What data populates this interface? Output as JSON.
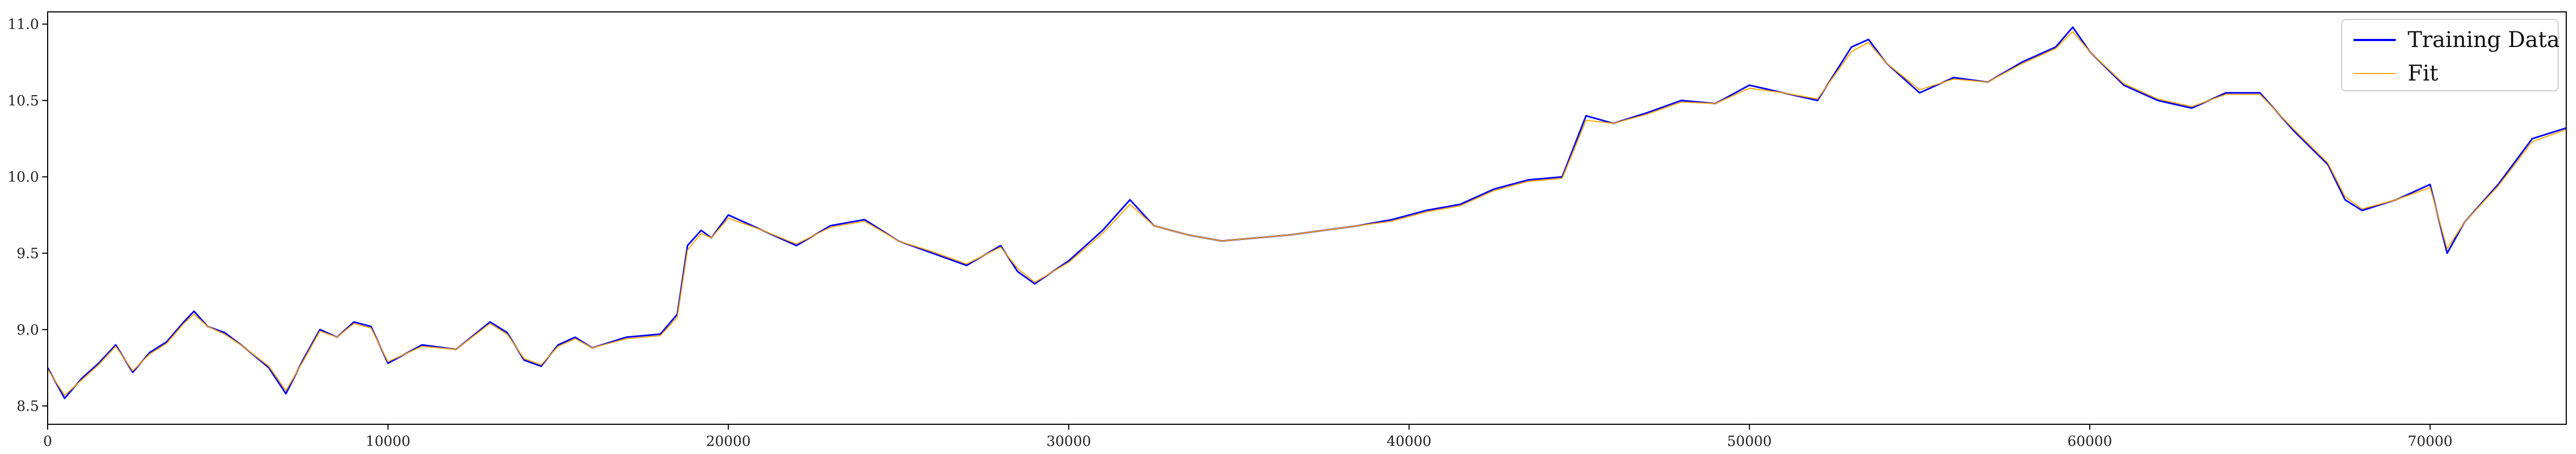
{
  "chart_data": {
    "type": "line",
    "title": "",
    "xlabel": "",
    "ylabel": "",
    "xlim": [
      0,
      74000
    ],
    "ylim": [
      8.38,
      11.08
    ],
    "xticks": [
      0,
      10000,
      20000,
      30000,
      40000,
      50000,
      60000,
      70000
    ],
    "xtick_labels": [
      "0",
      "10000",
      "20000",
      "30000",
      "40000",
      "50000",
      "60000",
      "70000"
    ],
    "yticks": [
      8.5,
      9.0,
      9.5,
      10.0,
      10.5,
      11.0
    ],
    "ytick_labels": [
      "8.5",
      "9.0",
      "9.5",
      "10.0",
      "10.5",
      "11.0"
    ],
    "grid": false,
    "legend": {
      "position": "top-right"
    },
    "series": [
      {
        "name": "Training Data",
        "color": "#0000ff",
        "x": [
          0,
          500,
          1000,
          1500,
          2000,
          2500,
          3000,
          3500,
          4000,
          4300,
          4700,
          5200,
          5800,
          6500,
          7000,
          7500,
          8000,
          8500,
          9000,
          9500,
          10000,
          11000,
          12000,
          13000,
          13500,
          14000,
          14500,
          15000,
          15500,
          16000,
          17000,
          18000,
          18500,
          18800,
          19200,
          19500,
          20000,
          21000,
          22000,
          23000,
          24000,
          25000,
          26000,
          27000,
          28000,
          28500,
          29000,
          30000,
          31000,
          31800,
          32500,
          33500,
          34500,
          35500,
          36500,
          37500,
          38500,
          39500,
          40500,
          41500,
          42500,
          43500,
          44500,
          45200,
          46000,
          47000,
          48000,
          49000,
          50000,
          51000,
          52000,
          53000,
          53500,
          54000,
          55000,
          56000,
          57000,
          58000,
          59000,
          59500,
          60000,
          61000,
          62000,
          63000,
          64000,
          65000,
          66000,
          67000,
          67500,
          68000,
          69000,
          69500,
          70000,
          70500,
          71000,
          72000,
          73000,
          74000
        ],
        "values": [
          8.75,
          8.55,
          8.68,
          8.78,
          8.9,
          8.72,
          8.85,
          8.92,
          9.05,
          9.12,
          9.02,
          8.98,
          8.88,
          8.75,
          8.58,
          8.8,
          9.0,
          8.95,
          9.05,
          9.02,
          8.78,
          8.9,
          8.87,
          9.05,
          8.98,
          8.8,
          8.76,
          8.9,
          8.95,
          8.88,
          8.95,
          8.97,
          9.1,
          9.55,
          9.65,
          9.6,
          9.75,
          9.65,
          9.55,
          9.68,
          9.72,
          9.58,
          9.5,
          9.42,
          9.55,
          9.38,
          9.3,
          9.45,
          9.65,
          9.85,
          9.68,
          9.62,
          9.58,
          9.6,
          9.62,
          9.65,
          9.68,
          9.72,
          9.78,
          9.82,
          9.92,
          9.98,
          10.0,
          10.4,
          10.35,
          10.42,
          10.5,
          10.48,
          10.6,
          10.55,
          10.5,
          10.85,
          10.9,
          10.75,
          10.55,
          10.65,
          10.62,
          10.75,
          10.85,
          10.98,
          10.82,
          10.6,
          10.5,
          10.45,
          10.55,
          10.55,
          10.3,
          10.08,
          9.85,
          9.78,
          9.85,
          9.9,
          9.95,
          9.5,
          9.7,
          9.95,
          10.25,
          10.32
        ]
      },
      {
        "name": "Fit",
        "color": "#ffa500",
        "x": [
          0,
          500,
          1000,
          1500,
          2000,
          2500,
          3000,
          3500,
          4000,
          4300,
          4700,
          5200,
          5800,
          6500,
          7000,
          7500,
          8000,
          8500,
          9000,
          9500,
          10000,
          11000,
          12000,
          13000,
          13500,
          14000,
          14500,
          15000,
          15500,
          16000,
          17000,
          18000,
          18500,
          18800,
          19200,
          19500,
          20000,
          21000,
          22000,
          23000,
          24000,
          25000,
          26000,
          27000,
          28000,
          28500,
          29000,
          30000,
          31000,
          31800,
          32500,
          33500,
          34500,
          35500,
          36500,
          37500,
          38500,
          39500,
          40500,
          41500,
          42500,
          43500,
          44500,
          45200,
          46000,
          47000,
          48000,
          49000,
          50000,
          51000,
          52000,
          53000,
          53500,
          54000,
          55000,
          56000,
          57000,
          58000,
          59000,
          59500,
          60000,
          61000,
          62000,
          63000,
          64000,
          65000,
          66000,
          67000,
          67500,
          68000,
          69000,
          69500,
          70000,
          70500,
          71000,
          72000,
          73000,
          74000
        ],
        "values": [
          8.74,
          8.57,
          8.67,
          8.77,
          8.89,
          8.73,
          8.84,
          8.91,
          9.04,
          9.1,
          9.02,
          8.97,
          8.88,
          8.76,
          8.6,
          8.79,
          8.99,
          8.95,
          9.04,
          9.01,
          8.79,
          8.89,
          8.87,
          9.04,
          8.97,
          8.81,
          8.77,
          8.89,
          8.94,
          8.88,
          8.94,
          8.96,
          9.08,
          9.52,
          9.63,
          9.6,
          9.73,
          9.65,
          9.56,
          9.67,
          9.71,
          9.58,
          9.51,
          9.43,
          9.54,
          9.4,
          9.31,
          9.44,
          9.63,
          9.82,
          9.68,
          9.62,
          9.58,
          9.6,
          9.62,
          9.65,
          9.68,
          9.71,
          9.77,
          9.81,
          9.91,
          9.97,
          9.99,
          10.37,
          10.35,
          10.41,
          10.49,
          10.48,
          10.58,
          10.55,
          10.51,
          10.82,
          10.88,
          10.75,
          10.57,
          10.64,
          10.62,
          10.74,
          10.84,
          10.95,
          10.82,
          10.61,
          10.51,
          10.46,
          10.54,
          10.54,
          10.31,
          10.09,
          9.87,
          9.79,
          9.85,
          9.89,
          9.93,
          9.53,
          9.7,
          9.94,
          10.23,
          10.31
        ]
      }
    ]
  }
}
